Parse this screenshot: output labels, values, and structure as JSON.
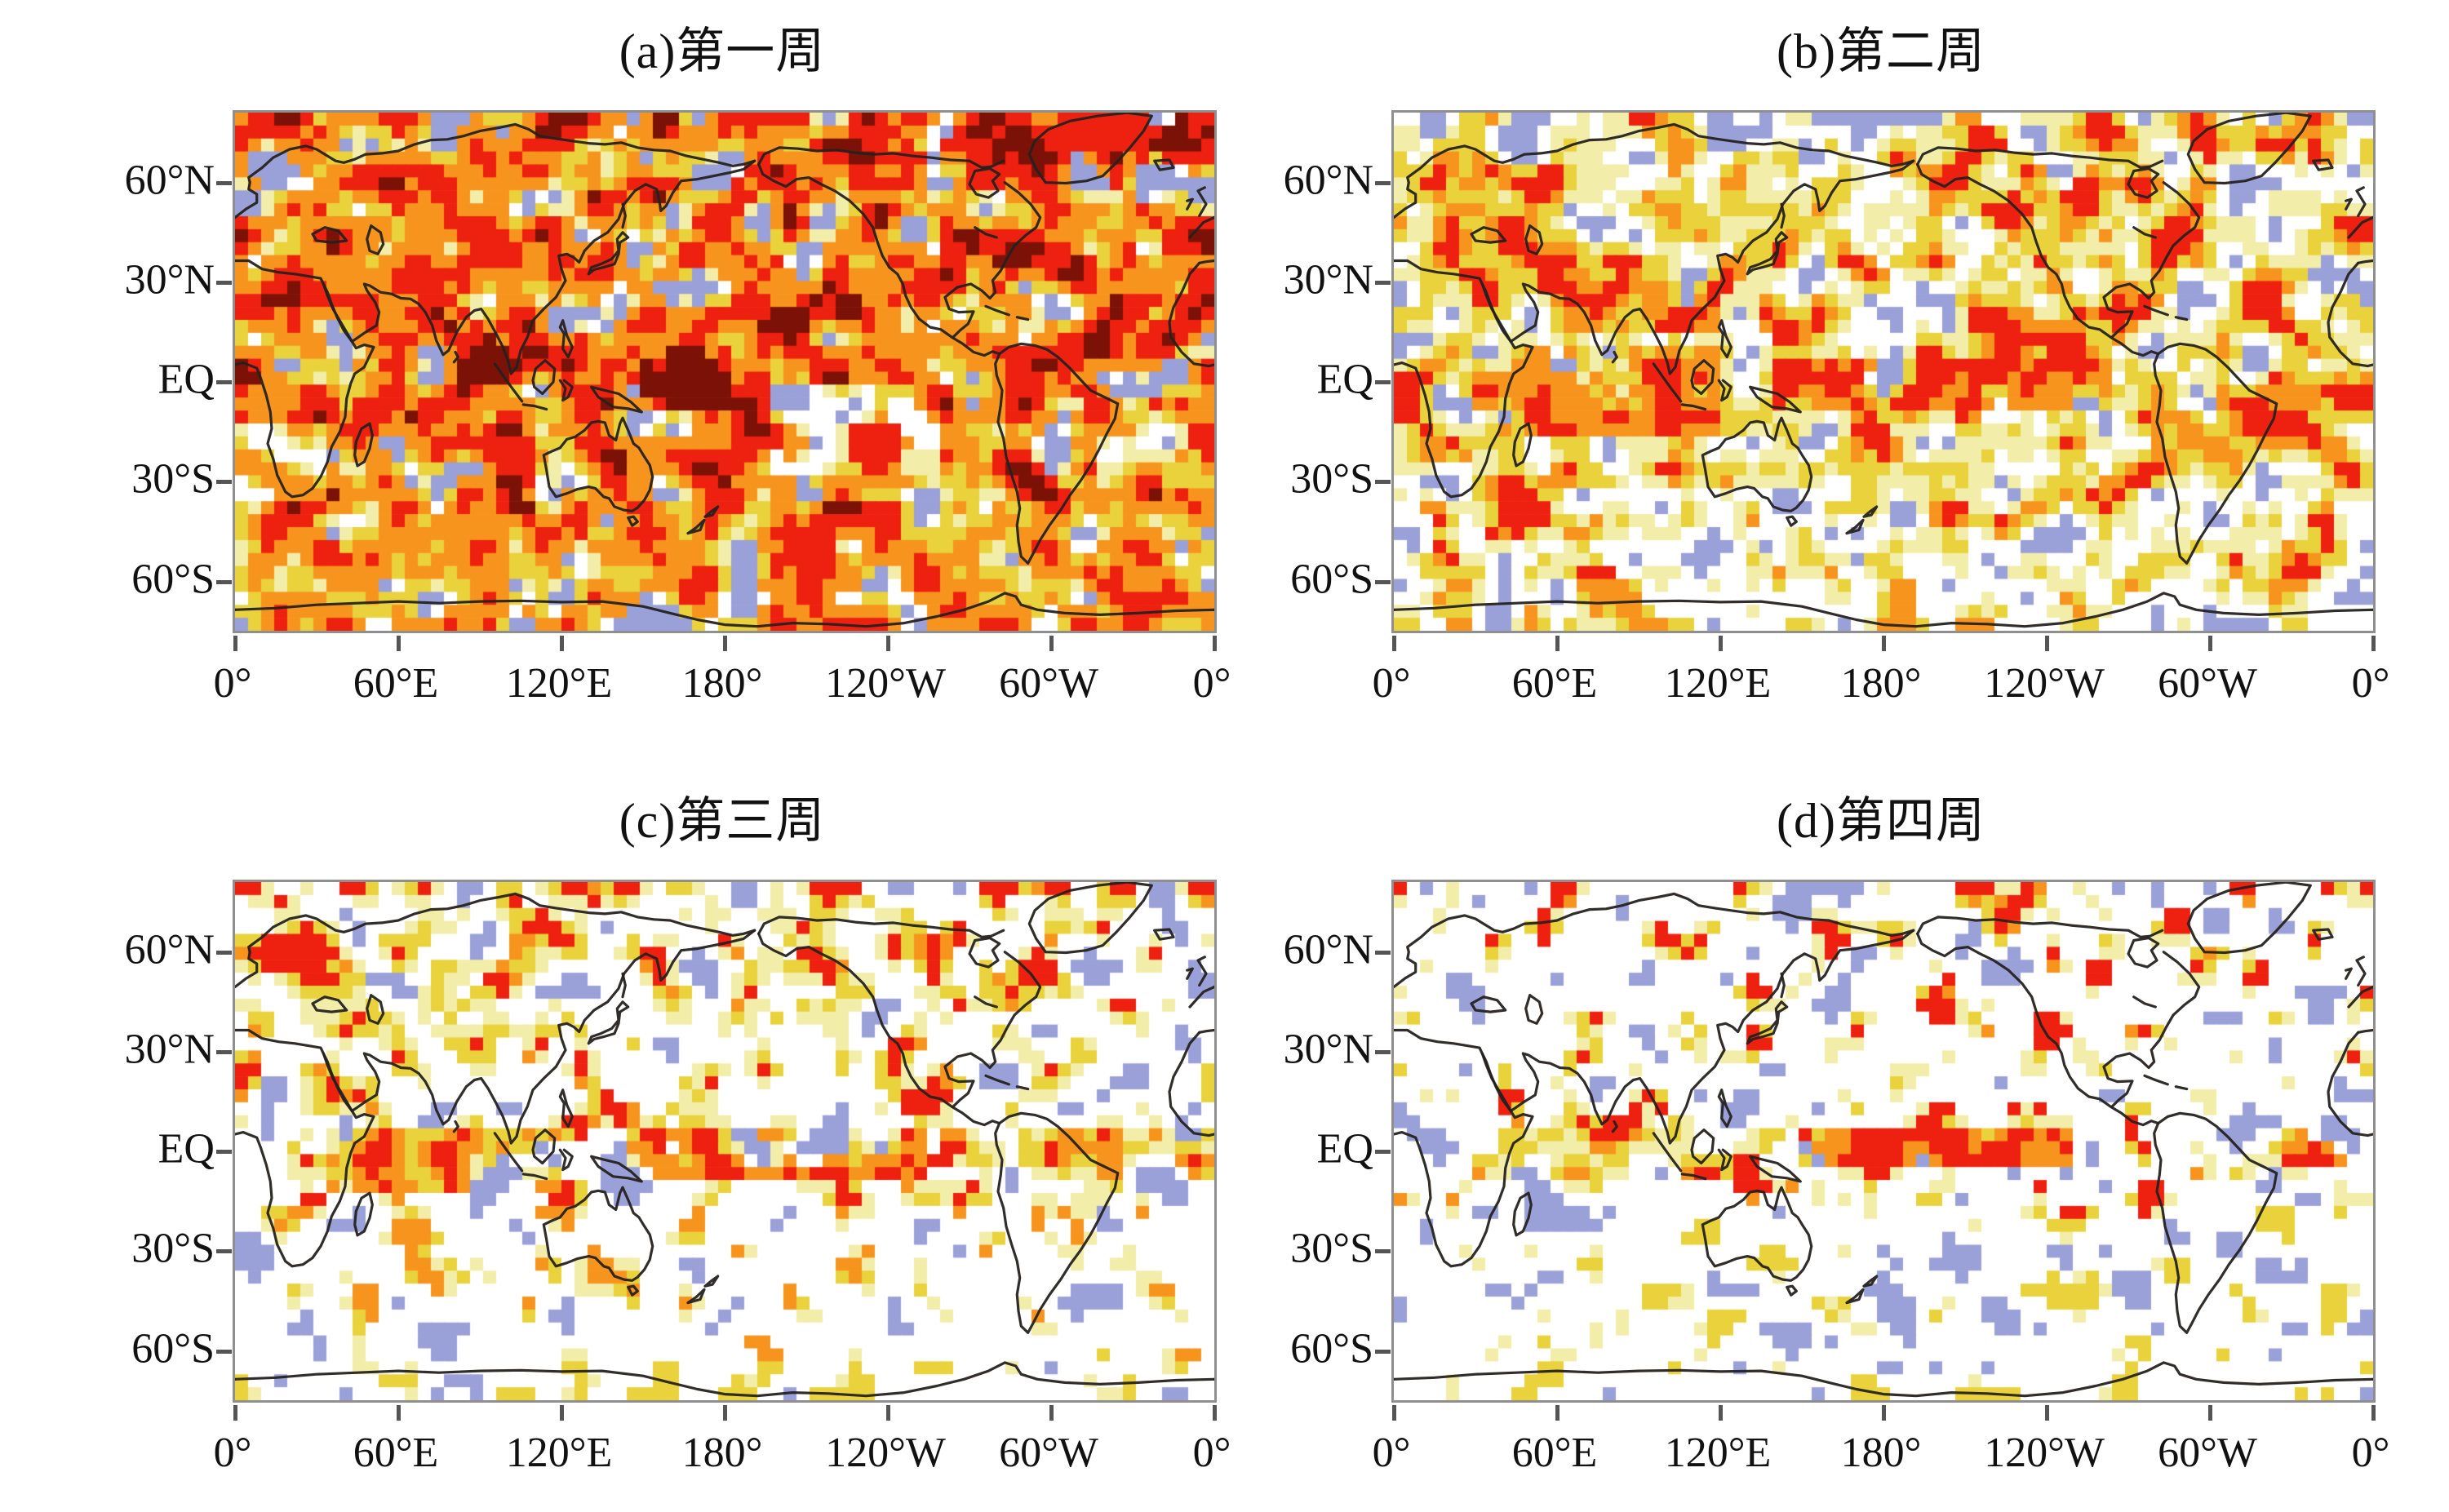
{
  "figure": {
    "background": "#ffffff",
    "axis": {
      "lat_labels": [
        "60°N",
        "30°N",
        "EQ",
        "30°S",
        "60°S"
      ],
      "lat_fracs": [
        0.135,
        0.3275,
        0.52,
        0.7125,
        0.905
      ],
      "lon_labels": [
        "0°",
        "60°E",
        "120°E",
        "180°",
        "120°W",
        "60°W",
        "0°"
      ]
    },
    "palette": {
      "blue": "#9aa0d8",
      "white": "#ffffff",
      "pale": "#f2eda9",
      "yellow": "#e9d23b",
      "orange": "#f7941e",
      "red": "#ee2010",
      "darkred": "#7c1207",
      "coast": "#25221f",
      "frame": "#8f8f8f",
      "tick": "#555555"
    },
    "chart_data": {
      "type": "heatmap",
      "description": "Four global correlation/anomaly maps, weeks 1-4; warm colors = higher values",
      "projection": {
        "lon_range": [
          0,
          360
        ],
        "eq_frac": 0.52,
        "deg_frac": 0.0064167
      },
      "color_order": [
        "blue",
        "white",
        "pale",
        "yellow",
        "orange",
        "red",
        "darkred"
      ],
      "panels": [
        {
          "key": "a",
          "label": "(a)第一周",
          "seed": 11,
          "default": {
            "white": 4,
            "pale": 8,
            "yellow": 13,
            "orange": 36,
            "red": 35,
            "darkred": 4
          },
          "zones": [
            {
              "lat": [
                -9,
                9
              ],
              "lon": [
                133,
                182
              ],
              "w": {
                "orange": 18,
                "red": 38,
                "darkred": 44
              }
            },
            {
              "lat": [
                58,
                82
              ],
              "lon": [
                225,
                360
              ],
              "w": {
                "white": 5,
                "yellow": 5,
                "orange": 18,
                "red": 44,
                "darkred": 28
              }
            },
            {
              "lat": [
                -28,
                -2
              ],
              "lon": [
                196,
                258
              ],
              "w": {
                "white": 38,
                "pale": 24,
                "yellow": 10,
                "orange": 22,
                "red": 6
              }
            },
            {
              "lat": [
                -36,
                -12
              ],
              "lon": [
                0,
                32
              ],
              "w": {
                "white": 42,
                "pale": 20,
                "yellow": 16,
                "orange": 22
              }
            },
            {
              "lat": [
                -33,
                -8
              ],
              "lon": [
                316,
                360
              ],
              "w": {
                "white": 32,
                "pale": 20,
                "yellow": 15,
                "orange": 27,
                "red": 6
              }
            },
            {
              "lat": [
                25,
                55
              ],
              "lon": [
                38,
                112
              ],
              "w": {
                "white": 5,
                "pale": 5,
                "yellow": 16,
                "orange": 48,
                "red": 26
              }
            },
            {
              "lat": [
                -62,
                -38
              ],
              "lon": [
                0,
                360
              ],
              "w": {
                "white": 5,
                "pale": 11,
                "yellow": 24,
                "orange": 40,
                "red": 20
              }
            },
            {
              "lat": [
                -75,
                -62
              ],
              "lon": [
                0,
                360
              ],
              "w": {
                "white": 12,
                "yellow": 18,
                "orange": 42,
                "red": 28
              }
            }
          ]
        },
        {
          "key": "b",
          "label": "(b)第二周",
          "seed": 22,
          "default": {
            "white": 26,
            "pale": 22,
            "yellow": 27,
            "orange": 17,
            "red": 8
          },
          "zones": [
            {
              "lat": [
                -7,
                7
              ],
              "lon": [
                140,
                265
              ],
              "w": {
                "white": 8,
                "yellow": 12,
                "orange": 36,
                "red": 44
              }
            },
            {
              "lat": [
                -18,
                12
              ],
              "lon": [
                30,
                120
              ],
              "w": {
                "white": 8,
                "pale": 10,
                "yellow": 22,
                "orange": 44,
                "red": 16
              }
            },
            {
              "lat": [
                15,
                30
              ],
              "lon": [
                60,
                120
              ],
              "w": {
                "white": 5,
                "pale": 5,
                "yellow": 20,
                "orange": 36,
                "red": 34
              }
            },
            {
              "lat": [
                -30,
                -10
              ],
              "lon": [
                108,
                158
              ],
              "w": {
                "white": 26,
                "pale": 16,
                "yellow": 34,
                "orange": 24
              }
            },
            {
              "lat": [
                30,
                72
              ],
              "lon": [
                0,
                150
              ],
              "w": {
                "white": 22,
                "pale": 26,
                "yellow": 32,
                "orange": 16,
                "red": 4
              }
            },
            {
              "lat": [
                30,
                72
              ],
              "lon": [
                150,
                360
              ],
              "w": {
                "white": 31,
                "pale": 22,
                "yellow": 25,
                "orange": 16,
                "red": 6
              }
            },
            {
              "lat": [
                -25,
                0
              ],
              "lon": [
                278,
                340
              ],
              "w": {
                "white": 18,
                "pale": 14,
                "yellow": 24,
                "orange": 36,
                "red": 8
              }
            },
            {
              "lat": [
                -58,
                -30
              ],
              "lon": [
                0,
                360
              ],
              "w": {
                "white": 46,
                "pale": 22,
                "yellow": 22,
                "orange": 8,
                "red": 2
              }
            },
            {
              "lat": [
                -75,
                -58
              ],
              "lon": [
                0,
                360
              ],
              "w": {
                "white": 58,
                "pale": 20,
                "yellow": 16,
                "orange": 6
              }
            }
          ]
        },
        {
          "key": "c",
          "label": "(c)第三周",
          "seed": 33,
          "default": {
            "white": 64,
            "pale": 17,
            "yellow": 14,
            "orange": 4,
            "red": 1
          },
          "zones": [
            {
              "lat": [
                -11,
                7
              ],
              "lon": [
                36,
                118
              ],
              "w": {
                "white": 10,
                "pale": 12,
                "yellow": 25,
                "orange": 40,
                "red": 13
              }
            },
            {
              "lat": [
                -7,
                6
              ],
              "lon": [
                146,
                252
              ],
              "w": {
                "white": 11,
                "pale": 6,
                "yellow": 15,
                "orange": 30,
                "red": 38
              }
            },
            {
              "lat": [
                33,
                68
              ],
              "lon": [
                0,
                135
              ],
              "w": {
                "white": 44,
                "pale": 22,
                "yellow": 26,
                "orange": 7,
                "red": 1
              }
            },
            {
              "lat": [
                -8,
                8
              ],
              "lon": [
                290,
                360
              ],
              "w": {
                "white": 34,
                "pale": 14,
                "yellow": 22,
                "orange": 22,
                "red": 8
              }
            },
            {
              "lat": [
                -62,
                -18
              ],
              "lon": [
                0,
                360
              ],
              "w": {
                "white": 81,
                "pale": 11,
                "yellow": 7,
                "orange": 1
              }
            },
            {
              "lat": [
                -76,
                -62
              ],
              "lon": [
                0,
                360
              ],
              "w": {
                "white": 88,
                "pale": 7,
                "yellow": 5
              }
            }
          ]
        },
        {
          "key": "d",
          "label": "(d)第四周",
          "seed": 44,
          "default": {
            "white": 75,
            "pale": 12,
            "yellow": 9,
            "orange": 2.5,
            "red": 0.7,
            "blue": 0.8
          },
          "zones": [
            {
              "lat": [
                -6,
                6
              ],
              "lon": [
                150,
                248
              ],
              "w": {
                "white": 8,
                "yellow": 10,
                "orange": 34,
                "red": 48
              }
            },
            {
              "lat": [
                -10,
                8
              ],
              "lon": [
                30,
                108
              ],
              "w": {
                "blue": 1,
                "white": 38,
                "pale": 18,
                "yellow": 23,
                "orange": 14,
                "red": 6
              }
            },
            {
              "lat": [
                -6,
                5
              ],
              "lon": [
                338,
                360
              ],
              "w": {
                "white": 24,
                "yellow": 20,
                "orange": 30,
                "red": 26
              }
            },
            {
              "lat": [
                -8,
                6
              ],
              "lon": [
                290,
                338
              ],
              "w": {
                "white": 44,
                "pale": 14,
                "yellow": 20,
                "orange": 17,
                "red": 5
              }
            },
            {
              "lat": [
                -62,
                -20
              ],
              "lon": [
                0,
                360
              ],
              "w": {
                "blue": 1,
                "white": 85,
                "pale": 8,
                "yellow": 6
              }
            },
            {
              "lat": [
                -76,
                -62
              ],
              "lon": [
                0,
                360
              ],
              "w": {
                "white": 90,
                "pale": 5,
                "yellow": 5
              }
            }
          ]
        }
      ]
    }
  }
}
